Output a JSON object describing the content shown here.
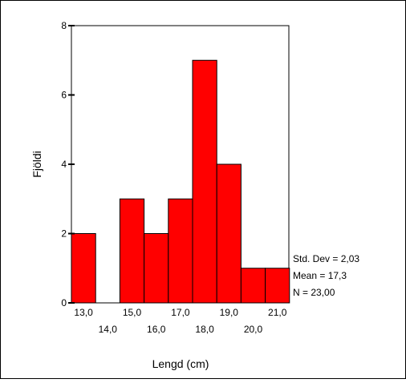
{
  "chart_data": {
    "type": "bar",
    "categories": [
      "13,0",
      "14,0",
      "15,0",
      "16,0",
      "17,0",
      "18,0",
      "19,0",
      "20,0",
      "21,0"
    ],
    "values": [
      2,
      0,
      3,
      2,
      3,
      7,
      4,
      1,
      1
    ],
    "xlabel": "Lengd (cm)",
    "ylabel": "Fjöldi",
    "ylim": [
      0,
      8
    ],
    "yticks": [
      "0",
      "2",
      "4",
      "6",
      "8"
    ],
    "grid": false,
    "bar_color": "#ff0000",
    "stats": {
      "std_dev": "Std. Dev = 2,03",
      "mean": "Mean = 17,3",
      "n": "N = 23,00"
    }
  }
}
